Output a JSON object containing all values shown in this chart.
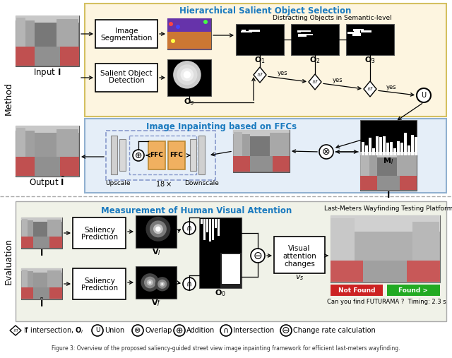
{
  "fig_width": 6.4,
  "fig_height": 5.07,
  "dpi": 100,
  "bg_color": "#ffffff",
  "hier_title": "Hierarchical Salient Object Selection",
  "hier_title_color": "#1a7abf",
  "inpaint_title": "Image Inpainting based on FFCs",
  "inpaint_title_color": "#1a7abf",
  "eval_title": "Measurement of Human Visual Attention",
  "eval_title_color": "#1a7abf",
  "wayfind_title": "Last-Meters Wayfinding Testing Platform",
  "not_found_color": "#cc2222",
  "found_color": "#22aa22",
  "ffc_box_color": "#f0b060",
  "can_you_find": "Can you find FUTURAMA ?  Timing: 2.3 s",
  "caption": "Figure 3: Overview of the proposed saliency-guided street view image inpainting framework for efficient last-meters wayfinding."
}
